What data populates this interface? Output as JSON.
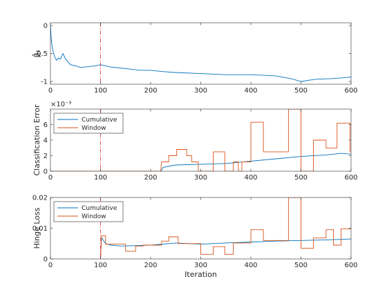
{
  "chart_data": [
    {
      "type": "line",
      "title": "",
      "xlabel": "",
      "ylabel": "β̂₁",
      "xlim": [
        0,
        600
      ],
      "ylim": [
        -1.05,
        0.05
      ],
      "xticks": [
        0,
        100,
        200,
        300,
        400,
        500,
        600
      ],
      "yticks": [
        0,
        -0.5,
        -1
      ],
      "ytick_labels": [
        "0",
        "-0.5",
        "-1"
      ],
      "vline": 100,
      "exponent": "",
      "legend": null,
      "series": [
        {
          "color": "#0072bd",
          "points": [
            [
              0,
              0.0
            ],
            [
              2,
              -0.3
            ],
            [
              5,
              -0.45
            ],
            [
              8,
              -0.55
            ],
            [
              12,
              -0.62
            ],
            [
              16,
              -0.58
            ],
            [
              20,
              -0.6
            ],
            [
              25,
              -0.5
            ],
            [
              30,
              -0.6
            ],
            [
              35,
              -0.65
            ],
            [
              40,
              -0.7
            ],
            [
              50,
              -0.72
            ],
            [
              60,
              -0.75
            ],
            [
              70,
              -0.74
            ],
            [
              80,
              -0.73
            ],
            [
              90,
              -0.72
            ],
            [
              100,
              -0.7
            ],
            [
              110,
              -0.72
            ],
            [
              120,
              -0.74
            ],
            [
              140,
              -0.76
            ],
            [
              160,
              -0.78
            ],
            [
              180,
              -0.8
            ],
            [
              200,
              -0.8
            ],
            [
              220,
              -0.82
            ],
            [
              250,
              -0.84
            ],
            [
              300,
              -0.86
            ],
            [
              350,
              -0.88
            ],
            [
              400,
              -0.88
            ],
            [
              450,
              -0.9
            ],
            [
              480,
              -0.95
            ],
            [
              500,
              -1.0
            ],
            [
              530,
              -0.96
            ],
            [
              560,
              -0.95
            ],
            [
              590,
              -0.93
            ],
            [
              600,
              -0.92
            ]
          ]
        }
      ]
    },
    {
      "type": "line",
      "title": "",
      "xlabel": "",
      "ylabel": "Classification Error",
      "xlim": [
        0,
        600
      ],
      "ylim": [
        0,
        8
      ],
      "xticks": [
        0,
        100,
        200,
        300,
        400,
        500,
        600
      ],
      "yticks": [
        0,
        2,
        4,
        6
      ],
      "ytick_labels": [
        "0",
        "2",
        "4",
        "6"
      ],
      "vline": 100,
      "exponent": "×10⁻³",
      "legend": "top-left",
      "series": [
        {
          "name": "Cumulative",
          "color": "#0072bd",
          "points": [
            [
              0,
              0
            ],
            [
              220,
              0
            ],
            [
              225,
              0.5
            ],
            [
              250,
              0.8
            ],
            [
              300,
              0.9
            ],
            [
              350,
              1.0
            ],
            [
              400,
              1.3
            ],
            [
              450,
              1.6
            ],
            [
              500,
              1.9
            ],
            [
              550,
              2.1
            ],
            [
              580,
              2.3
            ],
            [
              600,
              2.2
            ]
          ]
        },
        {
          "name": "Window",
          "color": "#d95319",
          "points": [
            [
              0,
              0
            ],
            [
              220,
              0
            ],
            [
              222,
              1.2
            ],
            [
              236,
              1.2
            ],
            [
              236,
              2.0
            ],
            [
              252,
              2.0
            ],
            [
              252,
              2.8
            ],
            [
              272,
              2.8
            ],
            [
              272,
              2.0
            ],
            [
              282,
              2.0
            ],
            [
              282,
              1.2
            ],
            [
              295,
              1.2
            ],
            [
              295,
              0
            ],
            [
              325,
              0
            ],
            [
              325,
              2.5
            ],
            [
              348,
              2.5
            ],
            [
              348,
              0
            ],
            [
              365,
              0
            ],
            [
              365,
              1.2
            ],
            [
              375,
              1.2
            ],
            [
              375,
              0
            ],
            [
              382,
              0
            ],
            [
              382,
              1.2
            ],
            [
              400,
              1.2
            ],
            [
              400,
              6.3
            ],
            [
              425,
              6.3
            ],
            [
              425,
              2.5
            ],
            [
              475,
              2.5
            ],
            [
              475,
              8
            ],
            [
              500,
              8
            ],
            [
              500,
              0
            ],
            [
              525,
              0
            ],
            [
              525,
              4.0
            ],
            [
              550,
              4.0
            ],
            [
              550,
              3.0
            ],
            [
              572,
              3.0
            ],
            [
              572,
              6.2
            ],
            [
              598,
              6.2
            ],
            [
              598,
              2.5
            ],
            [
              600,
              2.5
            ]
          ]
        }
      ]
    },
    {
      "type": "line",
      "title": "",
      "xlabel": "Iteration",
      "ylabel": "Hinge Loss",
      "xlim": [
        0,
        600
      ],
      "ylim": [
        0,
        0.02
      ],
      "xticks": [
        0,
        100,
        200,
        300,
        400,
        500,
        600
      ],
      "yticks": [
        0,
        0.01,
        0.02
      ],
      "ytick_labels": [
        "0",
        "0.01",
        "0.02"
      ],
      "vline": 100,
      "exponent": "",
      "legend": "top-left",
      "series": [
        {
          "name": "Cumulative",
          "color": "#0072bd",
          "points": [
            [
              100,
              0
            ],
            [
              102,
              0.007
            ],
            [
              105,
              0.0062
            ],
            [
              110,
              0.005
            ],
            [
              120,
              0.0045
            ],
            [
              140,
              0.0042
            ],
            [
              160,
              0.0043
            ],
            [
              200,
              0.0045
            ],
            [
              250,
              0.0052
            ],
            [
              300,
              0.0048
            ],
            [
              350,
              0.0052
            ],
            [
              400,
              0.0055
            ],
            [
              450,
              0.0058
            ],
            [
              500,
              0.006
            ],
            [
              550,
              0.0062
            ],
            [
              600,
              0.0065
            ]
          ]
        },
        {
          "name": "Window",
          "color": "#d95319",
          "points": [
            [
              100,
              0
            ],
            [
              102,
              0.0075
            ],
            [
              110,
              0.0075
            ],
            [
              110,
              0.0048
            ],
            [
              150,
              0.0048
            ],
            [
              150,
              0.0025
            ],
            [
              170,
              0.0025
            ],
            [
              170,
              0.0042
            ],
            [
              185,
              0.0042
            ],
            [
              185,
              0.0045
            ],
            [
              222,
              0.0045
            ],
            [
              222,
              0.0058
            ],
            [
              236,
              0.0058
            ],
            [
              236,
              0.0072
            ],
            [
              255,
              0.0072
            ],
            [
              255,
              0.005
            ],
            [
              300,
              0.005
            ],
            [
              300,
              0.0015
            ],
            [
              325,
              0.0015
            ],
            [
              325,
              0.004
            ],
            [
              348,
              0.004
            ],
            [
              348,
              0.0015
            ],
            [
              365,
              0.0015
            ],
            [
              365,
              0.0052
            ],
            [
              400,
              0.0052
            ],
            [
              400,
              0.0095
            ],
            [
              425,
              0.0095
            ],
            [
              425,
              0.006
            ],
            [
              475,
              0.006
            ],
            [
              475,
              0.02
            ],
            [
              500,
              0.02
            ],
            [
              500,
              0.0035
            ],
            [
              525,
              0.0035
            ],
            [
              525,
              0.0068
            ],
            [
              550,
              0.0068
            ],
            [
              550,
              0.0095
            ],
            [
              565,
              0.0095
            ],
            [
              565,
              0.0045
            ],
            [
              580,
              0.0045
            ],
            [
              580,
              0.0098
            ],
            [
              600,
              0.0098
            ]
          ]
        }
      ]
    }
  ]
}
